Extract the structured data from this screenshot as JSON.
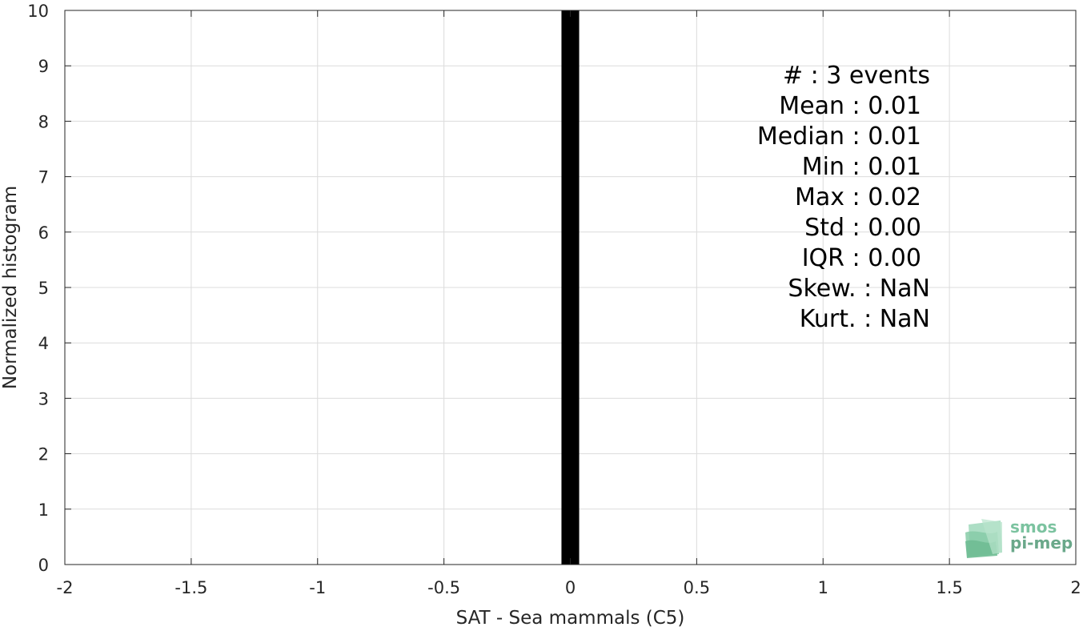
{
  "chart_data": {
    "type": "bar",
    "title": "",
    "xlabel": "SAT - Sea mammals (C5)",
    "ylabel": "Normalized histogram",
    "xlim": [
      -2,
      2
    ],
    "ylim": [
      0,
      10
    ],
    "xticks": [
      -2,
      -1.5,
      -1,
      -0.5,
      0,
      0.5,
      1,
      1.5,
      2
    ],
    "xtick_labels": [
      "-2",
      "-1.5",
      "-1",
      "-0.5",
      "0",
      "0.5",
      "1",
      "1.5",
      "2"
    ],
    "yticks": [
      0,
      1,
      2,
      3,
      4,
      5,
      6,
      7,
      8,
      9,
      10
    ],
    "ytick_labels": [
      "0",
      "1",
      "2",
      "3",
      "4",
      "5",
      "6",
      "7",
      "8",
      "9",
      "10"
    ],
    "grid": true,
    "bars": [
      {
        "x_start": -0.035,
        "x_end": 0.035,
        "value": 10,
        "color": "#000000"
      }
    ],
    "stats_lines": [
      "#  : 3 events",
      "Mean : 0.01",
      "Median : 0.01",
      "Min : 0.01",
      "Max : 0.02",
      "Std : 0.00",
      "IQR : 0.00",
      "Skew. : NaN",
      "Kurt. : NaN"
    ]
  },
  "logo": {
    "line1": "smos",
    "line2": "pi-mep",
    "color": "#7cc3a0",
    "color2": "#6aa88a"
  }
}
